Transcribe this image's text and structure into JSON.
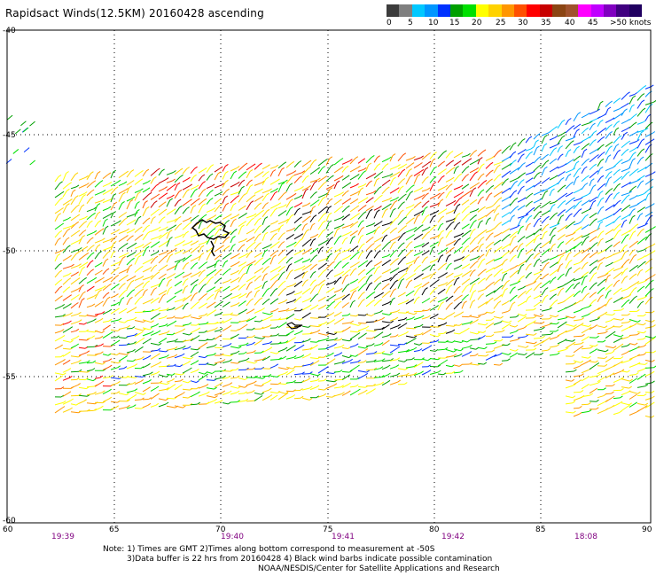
{
  "title": "Rapidsact Winds(12.5KM) 20160428 ascending",
  "legend": {
    "colors": [
      "#3c3c3c",
      "#7f7f7f",
      "#00c8ff",
      "#0096ff",
      "#0032ff",
      "#00a000",
      "#00e000",
      "#ffff00",
      "#ffd200",
      "#ff9600",
      "#ff5000",
      "#ff0000",
      "#c80000",
      "#8b4513",
      "#a0522d",
      "#ff00ff",
      "#c000ff",
      "#8000c0",
      "#400080",
      "#200060"
    ],
    "labels": [
      "0",
      "5",
      "10",
      "15",
      "20",
      "25",
      "30",
      "35",
      "40",
      "45",
      ">50 knots"
    ]
  },
  "axes": {
    "lat_labels": [
      "-40",
      "-45",
      "-50",
      "-55",
      "-60"
    ],
    "lon_labels": [
      "60",
      "65",
      "70",
      "75",
      "80",
      "85",
      "90"
    ],
    "times": [
      "19:39",
      "19:40",
      "19:41",
      "19:42",
      "18:08"
    ]
  },
  "notes": [
    "Note: 1) Times are GMT 2)Times along bottom correspond to measurement at -50S",
    "3)Data buffer is 22 hrs from 20160428 4) Black wind barbs indicate possible contamination",
    "NOAA/NESDIS/Center for Satellite Applications and Research"
  ]
}
